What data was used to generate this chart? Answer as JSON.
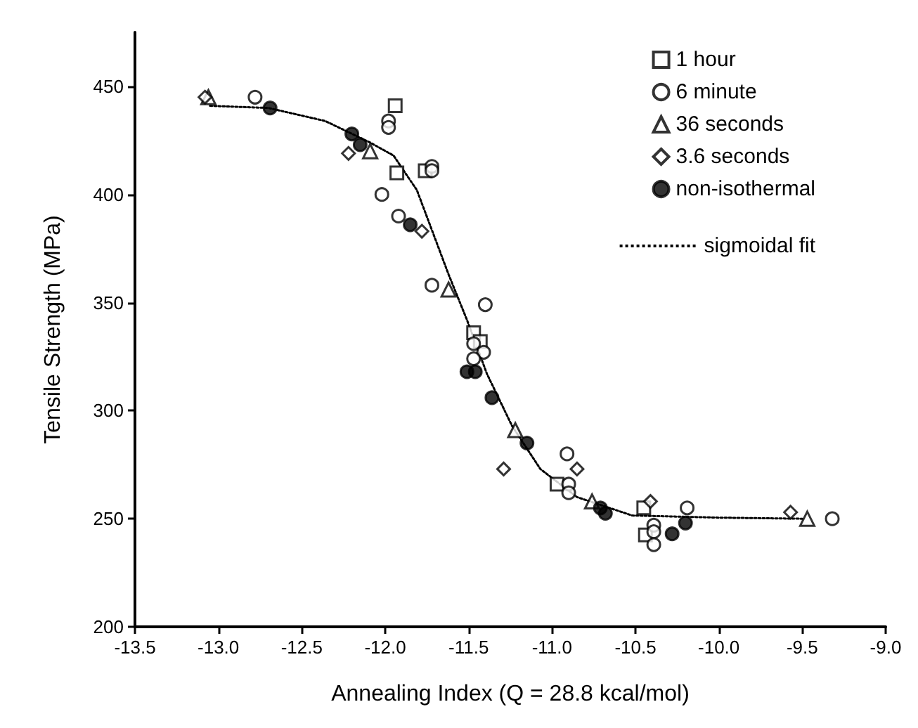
{
  "chart_data": {
    "type": "scatter",
    "xlabel": "Annealing Index (Q = 28.8 kcal/mol)",
    "ylabel": "Tensile Strength (MPa)",
    "xlim": [
      -13.5,
      -9.0
    ],
    "ylim": [
      200,
      475
    ],
    "xticks": [
      {
        "value": -13.5,
        "label": "-13.5"
      },
      {
        "value": -13,
        "label": "-13.0"
      },
      {
        "value": -12.5,
        "label": "-12.5"
      },
      {
        "value": -12,
        "label": "-12.0"
      },
      {
        "value": -11.5,
        "label": "-11.5"
      },
      {
        "value": -11,
        "label": "-11.0"
      },
      {
        "value": -10.5,
        "label": "-10.5"
      },
      {
        "value": -10,
        "label": "-10.0"
      },
      {
        "value": -9.5,
        "label": "-9.5"
      },
      {
        "value": -9,
        "label": "-9.0"
      }
    ],
    "yticks": [
      200,
      250,
      300,
      350,
      400,
      450
    ],
    "grid": false,
    "legend": "top right",
    "series": [
      {
        "name": "1 hour",
        "color": "#ffffff",
        "marker": "square",
        "x": [
          -11.94,
          -11.93,
          -11.76,
          -11.47,
          -11.43,
          -10.97,
          -10.45,
          -10.44
        ],
        "values": [
          441,
          410,
          411,
          336,
          332,
          266,
          255,
          242.5
        ]
      },
      {
        "name": "6 minute",
        "color": "#ffffff",
        "marker": "circle",
        "x": [
          -12.78,
          -11.98,
          -11.98,
          -12.02,
          -11.72,
          -11.72,
          -11.92,
          -11.72,
          -11.4,
          -11.47,
          -11.41,
          -11.47,
          -10.91,
          -10.9,
          -10.9,
          -10.39,
          -10.39,
          -10.39,
          -10.19,
          -9.32
        ],
        "values": [
          445,
          434,
          431,
          400,
          413,
          411,
          390,
          358,
          349,
          331,
          327,
          324,
          280,
          266,
          262,
          247,
          244,
          238,
          255,
          250
        ]
      },
      {
        "name": "36 seconds",
        "color": "#ffffff",
        "marker": "triangle",
        "x": [
          -13.06,
          -12.09,
          -11.62,
          -11.22,
          -10.76,
          -9.47
        ],
        "values": [
          445,
          420,
          356,
          291,
          258,
          250
        ]
      },
      {
        "name": "3.6 seconds",
        "color": "#ffffff",
        "marker": "diamond",
        "x": [
          -13.08,
          -12.22,
          -11.78,
          -11.29,
          -10.85,
          -10.41,
          -9.57
        ],
        "values": [
          445,
          419,
          383,
          273,
          273,
          258,
          253
        ]
      },
      {
        "name": "non-isothermal",
        "color": "#000000",
        "marker": "circle",
        "x": [
          -12.69,
          -12.2,
          -12.15,
          -11.85,
          -11.51,
          -11.46,
          -11.36,
          -11.15,
          -10.71,
          -10.68,
          -10.28,
          -10.2
        ],
        "values": [
          440,
          428,
          423,
          386,
          318,
          318,
          306,
          285,
          255,
          252.5,
          243,
          248
        ]
      },
      {
        "name": "sigmoidal fit",
        "type": "line",
        "color": "#000000",
        "marker": "none",
        "line_style": "dotted",
        "x": [
          -13.05,
          -12.7,
          -12.36,
          -12.09,
          -11.95,
          -11.81,
          -11.62,
          -11.51,
          -11.39,
          -11.24,
          -11.07,
          -10.85,
          -10.52,
          -10.0,
          -9.5
        ],
        "values": [
          441,
          440,
          434,
          424,
          418,
          402,
          363,
          342,
          317,
          293,
          273,
          260,
          251.5,
          250.5,
          250
        ]
      }
    ]
  }
}
